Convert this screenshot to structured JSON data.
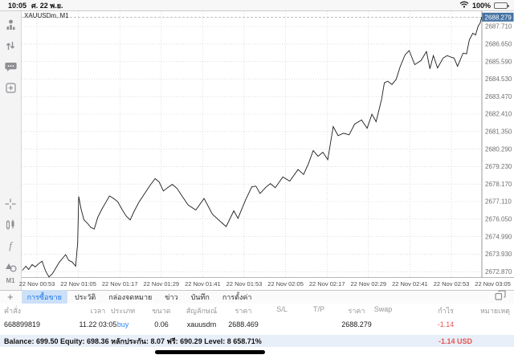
{
  "status_bar": {
    "time": "10:05",
    "date": "ศ. 22 พ.ย.",
    "battery_percent": "100%",
    "icons": [
      "wifi-icon",
      "battery-icon"
    ]
  },
  "sidebar": {
    "top_icons": [
      "quotes-icon",
      "trade-icon",
      "chat-icon",
      "new-order-icon"
    ],
    "bottom_icons": [
      "crosshair-icon",
      "chart-type-icon",
      "indicators-icon",
      "objects-icon"
    ],
    "timeframe_label": "M1"
  },
  "chart_data": {
    "type": "line",
    "title": "XAUUSDm, M1",
    "symbol": "XAUUSDm",
    "timeframe": "M1",
    "current_price": 2688.279,
    "current_price_label": "2688.279",
    "accent_tag_color": "#4573a3",
    "line_color": "#1c1c1c",
    "grid": "dotted",
    "legend_position": "none",
    "ylim": [
      2672.45,
      2688.65
    ],
    "y_ticks": [
      2687.71,
      2686.65,
      2685.59,
      2684.53,
      2683.47,
      2682.41,
      2681.35,
      2680.29,
      2679.23,
      2678.17,
      2677.11,
      2676.05,
      2674.99,
      2673.93,
      2672.87
    ],
    "x_ticks": [
      "22 Nov 00:53",
      "22 Nov 01:05",
      "22 Nov 01:17",
      "22 Nov 01:29",
      "22 Nov 01:41",
      "22 Nov 01:53",
      "22 Nov 02:05",
      "22 Nov 02:17",
      "22 Nov 02:29",
      "22 Nov 02:41",
      "22 Nov 02:53",
      "22 Nov 03:05"
    ],
    "x_tick_interval_minutes": 12,
    "points_unit": "minutes after 00:53 -> price",
    "points": [
      [
        -4.2,
        2672.95
      ],
      [
        -3.2,
        2673.2
      ],
      [
        -2.4,
        2673.0
      ],
      [
        -1.4,
        2673.3
      ],
      [
        -0.5,
        2673.15
      ],
      [
        0.5,
        2673.35
      ],
      [
        1.5,
        2673.5
      ],
      [
        2.5,
        2672.9
      ],
      [
        3.5,
        2672.55
      ],
      [
        4.5,
        2672.75
      ],
      [
        5.5,
        2673.1
      ],
      [
        6.5,
        2673.45
      ],
      [
        7.5,
        2673.7
      ],
      [
        8.3,
        2673.9
      ],
      [
        9.2,
        2673.55
      ],
      [
        10.2,
        2673.45
      ],
      [
        11.2,
        2673.2
      ],
      [
        11.8,
        2674.6
      ],
      [
        12.1,
        2677.42
      ],
      [
        12.8,
        2676.65
      ],
      [
        13.6,
        2676.0
      ],
      [
        14.6,
        2675.8
      ],
      [
        15.6,
        2675.55
      ],
      [
        16.6,
        2675.45
      ],
      [
        17.6,
        2676.15
      ],
      [
        18.8,
        2676.65
      ],
      [
        19.9,
        2677.05
      ],
      [
        21.0,
        2677.45
      ],
      [
        22.2,
        2677.3
      ],
      [
        23.4,
        2677.1
      ],
      [
        24.6,
        2676.65
      ],
      [
        25.8,
        2676.25
      ],
      [
        27.0,
        2676.0
      ],
      [
        28.2,
        2676.55
      ],
      [
        29.6,
        2677.1
      ],
      [
        31.2,
        2677.6
      ],
      [
        32.8,
        2678.1
      ],
      [
        34.2,
        2678.5
      ],
      [
        35.4,
        2678.3
      ],
      [
        36.6,
        2677.75
      ],
      [
        37.8,
        2677.95
      ],
      [
        39.2,
        2678.15
      ],
      [
        40.6,
        2677.9
      ],
      [
        42.0,
        2677.45
      ],
      [
        43.8,
        2676.9
      ],
      [
        46.0,
        2676.6
      ],
      [
        48.4,
        2677.3
      ],
      [
        50.8,
        2676.35
      ],
      [
        53.4,
        2675.85
      ],
      [
        54.8,
        2675.6
      ],
      [
        57.0,
        2676.55
      ],
      [
        58.2,
        2676.1
      ],
      [
        60.4,
        2677.2
      ],
      [
        62.2,
        2678.0
      ],
      [
        63.4,
        2678.05
      ],
      [
        64.6,
        2677.6
      ],
      [
        66.4,
        2678.0
      ],
      [
        67.6,
        2678.2
      ],
      [
        69.0,
        2677.95
      ],
      [
        71.2,
        2678.6
      ],
      [
        73.2,
        2678.35
      ],
      [
        75.6,
        2679.05
      ],
      [
        77.2,
        2678.75
      ],
      [
        78.6,
        2679.4
      ],
      [
        80.0,
        2680.2
      ],
      [
        81.4,
        2679.85
      ],
      [
        82.8,
        2680.1
      ],
      [
        84.2,
        2679.65
      ],
      [
        85.8,
        2681.65
      ],
      [
        87.2,
        2681.1
      ],
      [
        88.8,
        2681.25
      ],
      [
        90.4,
        2681.15
      ],
      [
        92.0,
        2681.8
      ],
      [
        94.0,
        2682.05
      ],
      [
        95.6,
        2681.55
      ],
      [
        97.0,
        2682.4
      ],
      [
        98.2,
        2681.95
      ],
      [
        99.8,
        2683.3
      ],
      [
        100.6,
        2684.3
      ],
      [
        101.6,
        2684.4
      ],
      [
        102.8,
        2684.2
      ],
      [
        104.0,
        2684.5
      ],
      [
        105.2,
        2685.3
      ],
      [
        106.6,
        2686.0
      ],
      [
        107.8,
        2686.25
      ],
      [
        109.4,
        2685.4
      ],
      [
        111.2,
        2685.65
      ],
      [
        112.8,
        2686.2
      ],
      [
        113.8,
        2685.15
      ],
      [
        114.8,
        2685.95
      ],
      [
        116.0,
        2685.2
      ],
      [
        117.6,
        2685.8
      ],
      [
        118.8,
        2685.95
      ],
      [
        120.0,
        2685.85
      ],
      [
        120.8,
        2685.8
      ],
      [
        121.8,
        2685.3
      ],
      [
        123.4,
        2686.1
      ],
      [
        124.4,
        2686.05
      ],
      [
        125.2,
        2686.9
      ],
      [
        126.2,
        2687.3
      ],
      [
        127.0,
        2687.2
      ],
      [
        127.8,
        2687.75
      ],
      [
        128.3,
        2687.9
      ],
      [
        128.8,
        2688.279
      ]
    ]
  },
  "bottom_bar": {
    "add_button": "+",
    "window_icon": "panels-icon",
    "tabs": [
      {
        "label": "การซื้อขาย",
        "selected": true
      },
      {
        "label": "ประวัติ",
        "selected": false
      },
      {
        "label": "กล่องจดหมาย",
        "selected": false
      },
      {
        "label": "ข่าว",
        "selected": false
      },
      {
        "label": "บันทึก",
        "selected": false
      },
      {
        "label": "การตั้งค่า",
        "selected": false
      }
    ]
  },
  "table": {
    "columns": [
      {
        "id": "order",
        "label": "คำสั่ง"
      },
      {
        "id": "time",
        "label": "เวลา"
      },
      {
        "id": "type",
        "label": "ประเภท"
      },
      {
        "id": "volume",
        "label": "ขนาด"
      },
      {
        "id": "symbol",
        "label": "สัญลักษณ์"
      },
      {
        "id": "price_open",
        "label": "ราคา"
      },
      {
        "id": "sl",
        "label": "S/L"
      },
      {
        "id": "tp",
        "label": "T/P"
      },
      {
        "id": "price_current",
        "label": "ราคา"
      },
      {
        "id": "swap",
        "label": "Swap"
      },
      {
        "id": "profit",
        "label": "กำไร"
      },
      {
        "id": "comment",
        "label": "หมายเหตุ"
      }
    ],
    "rows": [
      {
        "order": "668899819",
        "time": "11.22 03:05",
        "type": "buy",
        "volume": "0.06",
        "symbol": "xauusdm",
        "price_open": "2688.469",
        "sl": "",
        "tp": "",
        "price_current": "2688.279",
        "swap": "",
        "profit": "-1.14",
        "comment": ""
      }
    ],
    "buy_color": "#2b87f0",
    "loss_color": "#e8534e"
  },
  "account_bar": {
    "summary": "Balance: 699.50 Equity: 698.36 หลักประกัน: 8.07 ฟรี: 690.29 Level: 8 658.71%",
    "profit": "-1.14",
    "currency": "USD"
  }
}
